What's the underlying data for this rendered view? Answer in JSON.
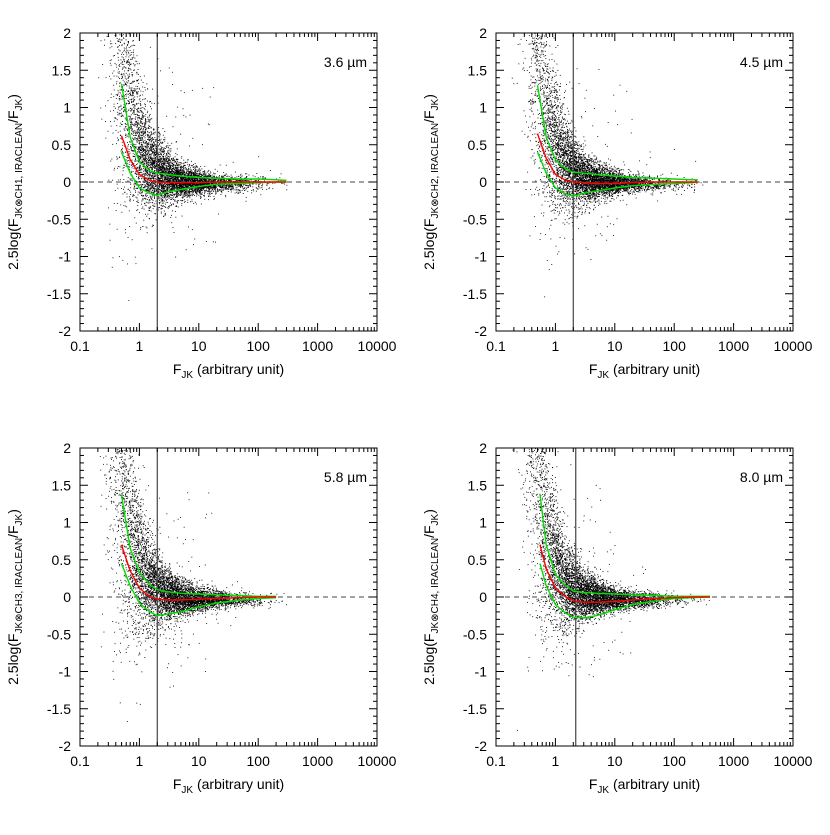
{
  "chart_data": [
    {
      "type": "scatter",
      "label": "3.6 µm",
      "ylabel": {
        "prefix": "2.5log(F",
        "sub": "JK⊗CH1, IRACLEAN",
        "mid": "/F",
        "sub2": "JK",
        "suffix": ")"
      },
      "xlabel": {
        "prefix": "F",
        "sub": "JK",
        "suffix": " (arbitrary unit)"
      },
      "xscale": "log",
      "xlim": [
        0.1,
        10000
      ],
      "ylim": [
        -2,
        2
      ],
      "xticks": [
        "0.1",
        "1",
        "10",
        "100",
        "1000",
        "10000"
      ],
      "yticks": [
        "-2",
        "-1.5",
        "-1",
        "-0.5",
        "0",
        "0.5",
        "1",
        "1.5",
        "2"
      ],
      "vline_x": 2.0,
      "hline_y": 0,
      "points": 6500,
      "scatter_cutoff": 300,
      "median_curve": {
        "x": [
          0.5,
          0.7,
          1,
          1.5,
          2,
          3,
          5,
          10,
          20,
          50,
          100,
          200,
          300
        ],
        "y": [
          0.62,
          0.3,
          0.1,
          0.02,
          0.0,
          -0.01,
          -0.01,
          -0.01,
          0.0,
          0.0,
          0.0,
          0.0,
          0.0
        ]
      },
      "upper_curve": {
        "x": [
          0.5,
          0.7,
          1,
          1.5,
          2,
          3,
          5,
          10,
          20,
          50,
          100,
          200,
          300
        ],
        "y": [
          1.32,
          0.6,
          0.27,
          0.15,
          0.12,
          0.1,
          0.08,
          0.06,
          0.05,
          0.04,
          0.04,
          0.03,
          0.02
        ]
      },
      "lower_curve": {
        "x": [
          0.5,
          0.7,
          1,
          1.5,
          2,
          3,
          5,
          10,
          20,
          50,
          100,
          200,
          300
        ],
        "y": [
          0.4,
          0.12,
          -0.08,
          -0.15,
          -0.18,
          -0.13,
          -0.1,
          -0.06,
          -0.03,
          -0.02,
          -0.01,
          0.0,
          0.0
        ]
      }
    },
    {
      "type": "scatter",
      "label": "4.5 µm",
      "ylabel": {
        "prefix": "2.5log(F",
        "sub": "JK⊗CH2, IRACLEAN",
        "mid": "/F",
        "sub2": "JK",
        "suffix": ")"
      },
      "xlabel": {
        "prefix": "F",
        "sub": "JK",
        "suffix": " (arbitrary unit)"
      },
      "xscale": "log",
      "xlim": [
        0.1,
        10000
      ],
      "ylim": [
        -2,
        2
      ],
      "xticks": [
        "0.1",
        "1",
        "10",
        "100",
        "1000",
        "10000"
      ],
      "yticks": [
        "-2",
        "-1.5",
        "-1",
        "-0.5",
        "0",
        "0.5",
        "1",
        "1.5",
        "2"
      ],
      "vline_x": 2.0,
      "hline_y": 0,
      "points": 6500,
      "scatter_cutoff": 300,
      "median_curve": {
        "x": [
          0.5,
          0.7,
          1,
          1.5,
          2,
          3,
          5,
          10,
          20,
          50,
          100,
          200,
          250
        ],
        "y": [
          0.65,
          0.32,
          0.1,
          0.02,
          0.0,
          -0.01,
          -0.02,
          -0.02,
          -0.01,
          0.0,
          0.0,
          0.0,
          0.0
        ]
      },
      "upper_curve": {
        "x": [
          0.5,
          0.7,
          1,
          1.5,
          2,
          3,
          5,
          10,
          20,
          50,
          100,
          200,
          250
        ],
        "y": [
          1.3,
          0.6,
          0.3,
          0.17,
          0.13,
          0.12,
          0.1,
          0.08,
          0.06,
          0.05,
          0.04,
          0.03,
          0.03
        ]
      },
      "lower_curve": {
        "x": [
          0.5,
          0.7,
          1,
          1.5,
          2,
          3,
          5,
          10,
          20,
          50,
          100,
          200,
          250
        ],
        "y": [
          0.4,
          0.12,
          -0.08,
          -0.16,
          -0.19,
          -0.15,
          -0.12,
          -0.08,
          -0.05,
          -0.03,
          -0.02,
          -0.01,
          0.0
        ]
      }
    },
    {
      "type": "scatter",
      "label": "5.8 µm",
      "ylabel": {
        "prefix": "2.5log(F",
        "sub": "JK⊗CH3, IRACLEAN",
        "mid": "/F",
        "sub2": "JK",
        "suffix": ")"
      },
      "xlabel": {
        "prefix": "F",
        "sub": "JK",
        "suffix": " (arbitrary unit)"
      },
      "xscale": "log",
      "xlim": [
        0.1,
        10000
      ],
      "ylim": [
        -2,
        2
      ],
      "xticks": [
        "0.1",
        "1",
        "10",
        "100",
        "1000",
        "10000"
      ],
      "yticks": [
        "-2",
        "-1.5",
        "-1",
        "-0.5",
        "0",
        "0.5",
        "1",
        "1.5",
        "2"
      ],
      "vline_x": 2.0,
      "hline_y": 0,
      "points": 6500,
      "scatter_cutoff": 300,
      "median_curve": {
        "x": [
          0.5,
          0.7,
          1,
          1.5,
          2,
          3,
          5,
          10,
          20,
          50,
          100,
          200
        ],
        "y": [
          0.7,
          0.35,
          0.12,
          0.0,
          -0.03,
          -0.04,
          -0.04,
          -0.03,
          -0.02,
          -0.01,
          0.0,
          0.0
        ]
      },
      "upper_curve": {
        "x": [
          0.5,
          0.7,
          1,
          1.5,
          2,
          3,
          5,
          10,
          20,
          50,
          100,
          200
        ],
        "y": [
          1.37,
          0.65,
          0.33,
          0.16,
          0.1,
          0.07,
          0.05,
          0.04,
          0.03,
          0.02,
          0.01,
          0.01
        ]
      },
      "lower_curve": {
        "x": [
          0.5,
          0.7,
          1,
          1.5,
          2,
          3,
          5,
          10,
          20,
          50,
          100,
          200
        ],
        "y": [
          0.45,
          0.15,
          -0.08,
          -0.2,
          -0.25,
          -0.23,
          -0.2,
          -0.13,
          -0.08,
          -0.04,
          -0.02,
          -0.01
        ]
      }
    },
    {
      "type": "scatter",
      "label": "8.0 µm",
      "ylabel": {
        "prefix": "2.5log(F",
        "sub": "JK⊗CH4, IRACLEAN",
        "mid": "/F",
        "sub2": "JK",
        "suffix": ")"
      },
      "xlabel": {
        "prefix": "F",
        "sub": "JK",
        "suffix": " (arbitrary unit)"
      },
      "xscale": "log",
      "xlim": [
        0.1,
        10000
      ],
      "ylim": [
        -2,
        2
      ],
      "xticks": [
        "0.1",
        "1",
        "10",
        "100",
        "1000",
        "10000"
      ],
      "yticks": [
        "-2",
        "-1.5",
        "-1",
        "-0.5",
        "0",
        "0.5",
        "1",
        "1.5",
        "2"
      ],
      "vline_x": 2.2,
      "hline_y": 0,
      "points": 6500,
      "scatter_cutoff": 400,
      "median_curve": {
        "x": [
          0.55,
          0.7,
          1,
          1.5,
          2,
          3,
          5,
          10,
          20,
          50,
          100,
          200,
          400
        ],
        "y": [
          0.7,
          0.38,
          0.12,
          0.0,
          -0.05,
          -0.07,
          -0.07,
          -0.06,
          -0.04,
          -0.02,
          -0.01,
          0.0,
          0.0
        ]
      },
      "upper_curve": {
        "x": [
          0.55,
          0.7,
          1,
          1.5,
          2,
          3,
          5,
          10,
          20,
          50,
          100,
          200,
          400
        ],
        "y": [
          1.38,
          0.7,
          0.3,
          0.15,
          0.08,
          0.06,
          0.05,
          0.04,
          0.03,
          0.02,
          0.01,
          0.01,
          0.01
        ]
      },
      "lower_curve": {
        "x": [
          0.55,
          0.7,
          1,
          1.5,
          2,
          3,
          5,
          10,
          20,
          50,
          100,
          200,
          400
        ],
        "y": [
          0.45,
          0.15,
          -0.1,
          -0.22,
          -0.27,
          -0.28,
          -0.25,
          -0.17,
          -0.1,
          -0.05,
          -0.02,
          -0.01,
          0.0
        ]
      }
    }
  ],
  "colors": {
    "axis": "#000000",
    "points": "#000000",
    "median": "#ff0000",
    "envelope": "#00dd00",
    "reference": "#444444"
  }
}
